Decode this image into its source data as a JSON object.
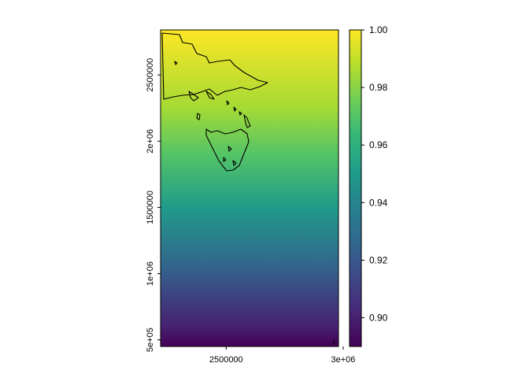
{
  "chart_data": {
    "type": "heatmap",
    "title": "",
    "xlabel": "",
    "ylabel": "",
    "xlim": [
      2220000,
      2980000
    ],
    "ylim": [
      450000,
      2840000
    ],
    "x_ticks": [
      {
        "value": 2500000,
        "label": "2500000"
      },
      {
        "value": 3000000,
        "label": "3e+06"
      }
    ],
    "y_ticks": [
      {
        "value": 500000,
        "label": "5e+05"
      },
      {
        "value": 1000000,
        "label": "1e+06"
      },
      {
        "value": 1500000,
        "label": "1500000"
      },
      {
        "value": 2000000,
        "label": "2e+06"
      },
      {
        "value": 2500000,
        "label": "2500000"
      }
    ],
    "gradient": {
      "direction": "bottom-to-top",
      "stops": [
        {
          "y": 450000,
          "value": 0.89
        },
        {
          "y": 600000,
          "value": 0.9
        },
        {
          "y": 1050000,
          "value": 0.925
        },
        {
          "y": 1500000,
          "value": 0.95
        },
        {
          "y": 1900000,
          "value": 0.97
        },
        {
          "y": 2250000,
          "value": 0.985
        },
        {
          "y": 2840000,
          "value": 1.0
        }
      ]
    },
    "colorbar": {
      "min": 0.89,
      "max": 1.0,
      "palette": "viridis",
      "ticks": [
        {
          "value": 0.9,
          "label": "0.90"
        },
        {
          "value": 0.92,
          "label": "0.92"
        },
        {
          "value": 0.94,
          "label": "0.94"
        },
        {
          "value": 0.96,
          "label": "0.96"
        },
        {
          "value": 0.98,
          "label": "0.98"
        },
        {
          "value": 1.0,
          "label": "1.00"
        }
      ]
    },
    "overlay": {
      "label": "coastline outlines (Victoria, Bass Strait islands, Tasmania)",
      "color": "#000000"
    },
    "viridis": [
      "#440154",
      "#482878",
      "#3e4a89",
      "#31688e",
      "#26828e",
      "#1f9e89",
      "#35b779",
      "#6ece58",
      "#b5de2b",
      "#fde725"
    ]
  }
}
